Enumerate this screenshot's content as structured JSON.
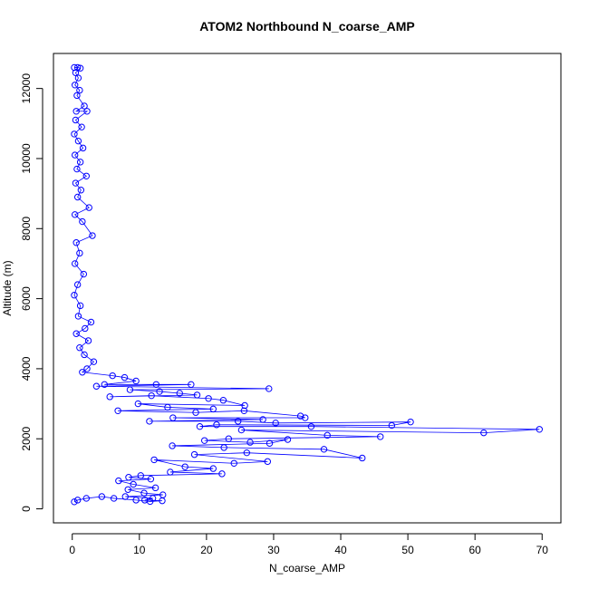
{
  "chart_data": {
    "type": "scatter",
    "title": "ATOM2 Northbound N_coarse_AMP",
    "xlabel": "N_coarse_AMP",
    "ylabel": "Altitude (m)",
    "xlim": [
      -2.8,
      72.8
    ],
    "ylim": [
      -400,
      13000
    ],
    "xticks": [
      0,
      10,
      20,
      30,
      40,
      50,
      60,
      70
    ],
    "yticks": [
      0,
      2000,
      4000,
      6000,
      8000,
      10000,
      12000
    ],
    "marker": "open-circle",
    "connected": true,
    "grid": false,
    "legend": "none",
    "series": [
      {
        "color": "#0000ff",
        "points": [
          [
            0.3,
            12600
          ],
          [
            0.8,
            12600
          ],
          [
            1.2,
            12580
          ],
          [
            0.5,
            12450
          ],
          [
            0.9,
            12300
          ],
          [
            0.4,
            12100
          ],
          [
            1.1,
            11950
          ],
          [
            0.7,
            11800
          ],
          [
            1.8,
            11500
          ],
          [
            0.6,
            11350
          ],
          [
            2.2,
            11350
          ],
          [
            0.5,
            11100
          ],
          [
            1.4,
            10900
          ],
          [
            0.3,
            10700
          ],
          [
            0.9,
            10500
          ],
          [
            1.6,
            10300
          ],
          [
            0.4,
            10100
          ],
          [
            1.2,
            9900
          ],
          [
            0.7,
            9700
          ],
          [
            2.1,
            9500
          ],
          [
            0.5,
            9300
          ],
          [
            1.3,
            9100
          ],
          [
            0.8,
            8900
          ],
          [
            2.5,
            8600
          ],
          [
            0.4,
            8400
          ],
          [
            1.5,
            8200
          ],
          [
            3.0,
            7800
          ],
          [
            0.6,
            7600
          ],
          [
            1.1,
            7300
          ],
          [
            0.4,
            7000
          ],
          [
            1.7,
            6700
          ],
          [
            0.8,
            6400
          ],
          [
            0.3,
            6100
          ],
          [
            1.2,
            5800
          ],
          [
            0.9,
            5500
          ],
          [
            2.8,
            5330
          ],
          [
            1.9,
            5150
          ],
          [
            0.6,
            5000
          ],
          [
            2.4,
            4800
          ],
          [
            1.1,
            4600
          ],
          [
            1.8,
            4400
          ],
          [
            3.2,
            4200
          ],
          [
            2.2,
            4000
          ],
          [
            1.5,
            3900
          ],
          [
            6.0,
            3800
          ],
          [
            7.8,
            3750
          ],
          [
            9.5,
            3650
          ],
          [
            4.8,
            3550
          ],
          [
            12.5,
            3550
          ],
          [
            17.7,
            3550
          ],
          [
            3.6,
            3500
          ],
          [
            29.3,
            3430
          ],
          [
            8.6,
            3400
          ],
          [
            13.0,
            3350
          ],
          [
            16.0,
            3300
          ],
          [
            18.6,
            3250
          ],
          [
            5.6,
            3200
          ],
          [
            11.8,
            3230
          ],
          [
            20.3,
            3150
          ],
          [
            22.5,
            3100
          ],
          [
            25.7,
            2950
          ],
          [
            9.8,
            3000
          ],
          [
            14.2,
            2900
          ],
          [
            21.0,
            2850
          ],
          [
            6.8,
            2800
          ],
          [
            18.4,
            2750
          ],
          [
            25.6,
            2800
          ],
          [
            34.0,
            2650
          ],
          [
            34.7,
            2600
          ],
          [
            15.0,
            2600
          ],
          [
            28.4,
            2550
          ],
          [
            11.5,
            2500
          ],
          [
            24.7,
            2500
          ],
          [
            30.3,
            2450
          ],
          [
            50.4,
            2480
          ],
          [
            47.6,
            2380
          ],
          [
            21.5,
            2400
          ],
          [
            19.0,
            2350
          ],
          [
            35.6,
            2350
          ],
          [
            69.6,
            2270
          ],
          [
            61.3,
            2170
          ],
          [
            25.2,
            2250
          ],
          [
            38.0,
            2100
          ],
          [
            45.9,
            2060
          ],
          [
            23.3,
            2000
          ],
          [
            19.7,
            1950
          ],
          [
            26.5,
            1900
          ],
          [
            32.1,
            1980
          ],
          [
            29.4,
            1870
          ],
          [
            14.9,
            1800
          ],
          [
            22.6,
            1750
          ],
          [
            37.5,
            1700
          ],
          [
            43.2,
            1450
          ],
          [
            26.0,
            1600
          ],
          [
            18.2,
            1550
          ],
          [
            29.1,
            1350
          ],
          [
            24.1,
            1300
          ],
          [
            12.2,
            1400
          ],
          [
            16.8,
            1200
          ],
          [
            21.0,
            1150
          ],
          [
            14.6,
            1050
          ],
          [
            22.3,
            1000
          ],
          [
            10.2,
            950
          ],
          [
            8.4,
            900
          ],
          [
            11.7,
            850
          ],
          [
            6.9,
            800
          ],
          [
            9.1,
            700
          ],
          [
            12.4,
            600
          ],
          [
            8.3,
            550
          ],
          [
            10.7,
            450
          ],
          [
            13.5,
            400
          ],
          [
            7.9,
            350
          ],
          [
            12.0,
            300
          ],
          [
            10.8,
            250
          ],
          [
            13.4,
            230
          ],
          [
            11.6,
            210
          ],
          [
            9.5,
            250
          ],
          [
            6.2,
            300
          ],
          [
            4.4,
            350
          ],
          [
            2.1,
            300
          ],
          [
            0.8,
            250
          ],
          [
            0.3,
            200
          ]
        ]
      }
    ]
  }
}
